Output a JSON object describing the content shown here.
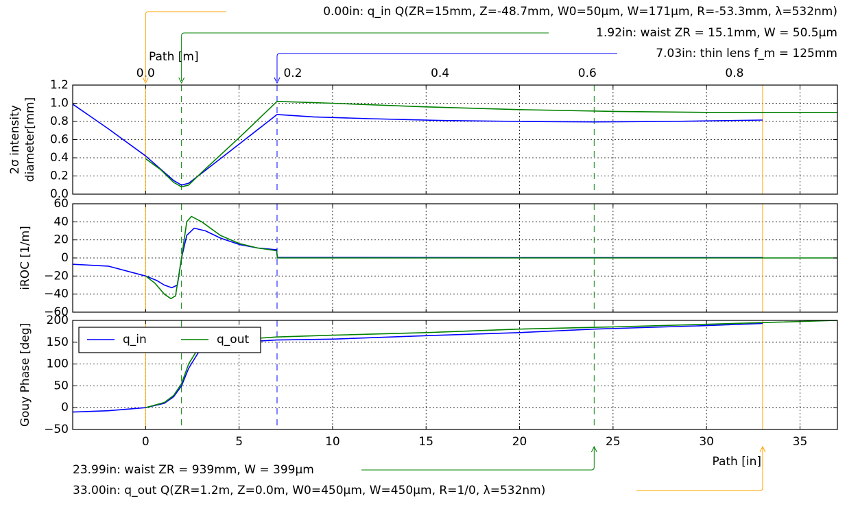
{
  "chart_data": {
    "type": "line",
    "x_axis": {
      "label": "Path [in]",
      "ticks": [
        0,
        5,
        10,
        15,
        20,
        25,
        30,
        35
      ],
      "range": [
        -3.9,
        37
      ]
    },
    "top_axis": {
      "label": "Path [m]",
      "ticks": [
        "0.0",
        "0.2",
        "0.4",
        "0.6",
        "0.8"
      ],
      "tick_values": [
        0.0,
        0.2,
        0.4,
        0.6,
        0.8
      ]
    },
    "panels": [
      {
        "id": "diameter",
        "ylabel": [
          "2σ intensity",
          "diameter[mm]"
        ],
        "ylim": [
          0,
          1.2
        ],
        "yticks": [
          "0.0",
          "0.2",
          "0.4",
          "0.6",
          "0.8",
          "1.0",
          "1.2"
        ],
        "ytick_values": [
          0,
          0.2,
          0.4,
          0.6,
          0.8,
          1.0,
          1.2
        ],
        "series": [
          {
            "name": "q_in",
            "color": "#0000ff",
            "points": [
              [
                -3.9,
                0.99
              ],
              [
                -2,
                0.72
              ],
              [
                0,
                0.42
              ],
              [
                1.0,
                0.24
              ],
              [
                1.5,
                0.15
              ],
              [
                1.92,
                0.1
              ],
              [
                2.3,
                0.12
              ],
              [
                3,
                0.23
              ],
              [
                5,
                0.55
              ],
              [
                7.03,
                0.876
              ],
              [
                9,
                0.85
              ],
              [
                12,
                0.83
              ],
              [
                16,
                0.81
              ],
              [
                20,
                0.8
              ],
              [
                24,
                0.795
              ],
              [
                28,
                0.8
              ],
              [
                33,
                0.815
              ]
            ]
          },
          {
            "name": "q_out",
            "color": "#008000",
            "points": [
              [
                0,
                0.39
              ],
              [
                0.8,
                0.27
              ],
              [
                1.5,
                0.13
              ],
              [
                1.92,
                0.08
              ],
              [
                2.3,
                0.1
              ],
              [
                3,
                0.24
              ],
              [
                5,
                0.62
              ],
              [
                7.03,
                1.02
              ],
              [
                10,
                1.0
              ],
              [
                15,
                0.96
              ],
              [
                20,
                0.93
              ],
              [
                25,
                0.91
              ],
              [
                30,
                0.9
              ],
              [
                37,
                0.9
              ]
            ]
          }
        ]
      },
      {
        "id": "iroc",
        "ylabel": [
          "iROC [1/m]"
        ],
        "ylim": [
          -60,
          60
        ],
        "yticks": [
          "−60",
          "−40",
          "−20",
          "0",
          "20",
          "40",
          "60"
        ],
        "ytick_values": [
          -60,
          -40,
          -20,
          0,
          20,
          40,
          60
        ],
        "series": [
          {
            "name": "q_in",
            "color": "#0000ff",
            "points": [
              [
                -3.9,
                -7
              ],
              [
                -2,
                -9
              ],
              [
                0,
                -20
              ],
              [
                0.6,
                -25
              ],
              [
                1.0,
                -30
              ],
              [
                1.4,
                -33
              ],
              [
                1.7,
                -30
              ],
              [
                1.92,
                0
              ],
              [
                2.2,
                25
              ],
              [
                2.6,
                33
              ],
              [
                3.2,
                30
              ],
              [
                4,
                22
              ],
              [
                5,
                15
              ],
              [
                6,
                11
              ],
              [
                7.0,
                9
              ],
              [
                7.05,
                0.5
              ],
              [
                10,
                0.5
              ],
              [
                20,
                0.4
              ],
              [
                33,
                0.3
              ]
            ]
          },
          {
            "name": "q_out",
            "color": "#008000",
            "points": [
              [
                0,
                -20
              ],
              [
                0.5,
                -28
              ],
              [
                1.0,
                -40
              ],
              [
                1.35,
                -45
              ],
              [
                1.6,
                -42
              ],
              [
                1.92,
                0
              ],
              [
                2.2,
                40
              ],
              [
                2.45,
                46
              ],
              [
                3,
                40
              ],
              [
                4,
                25
              ],
              [
                5,
                16
              ],
              [
                6,
                11
              ],
              [
                7.0,
                8
              ],
              [
                7.05,
                0
              ],
              [
                15,
                0
              ],
              [
                37,
                0
              ]
            ]
          }
        ]
      },
      {
        "id": "gouy",
        "ylabel": [
          "Gouy Phase [deg]"
        ],
        "ylim": [
          -50,
          200
        ],
        "yticks": [
          "−50",
          "0",
          "50",
          "100",
          "150",
          "200"
        ],
        "ytick_values": [
          -50,
          0,
          50,
          100,
          150,
          200
        ],
        "series": [
          {
            "name": "q_in",
            "color": "#0000ff",
            "points": [
              [
                -3.9,
                -10
              ],
              [
                -2,
                -7
              ],
              [
                0,
                0
              ],
              [
                1,
                10
              ],
              [
                1.5,
                25
              ],
              [
                1.92,
                50
              ],
              [
                2.3,
                90
              ],
              [
                2.8,
                125
              ],
              [
                3.5,
                140
              ],
              [
                5,
                150
              ],
              [
                7,
                155
              ],
              [
                10,
                157
              ],
              [
                15,
                165
              ],
              [
                20,
                172
              ],
              [
                24,
                180
              ],
              [
                30,
                188
              ],
              [
                33,
                193
              ]
            ]
          },
          {
            "name": "q_out",
            "color": "#008000",
            "points": [
              [
                0,
                0
              ],
              [
                1,
                12
              ],
              [
                1.5,
                28
              ],
              [
                1.92,
                55
              ],
              [
                2.3,
                100
              ],
              [
                2.8,
                135
              ],
              [
                3.5,
                148
              ],
              [
                5,
                156
              ],
              [
                7,
                162
              ],
              [
                10,
                166
              ],
              [
                15,
                172
              ],
              [
                20,
                180
              ],
              [
                25,
                185
              ],
              [
                30,
                191
              ],
              [
                33,
                195
              ],
              [
                37,
                200
              ]
            ]
          }
        ]
      }
    ],
    "vertical_markers": [
      {
        "x": 0.0,
        "color": "#ffa500",
        "style": "solid"
      },
      {
        "x": 1.92,
        "color": "#008000",
        "style": "dashed"
      },
      {
        "x": 7.03,
        "color": "#0000ff",
        "style": "dashed"
      },
      {
        "x": 23.99,
        "color": "#008000",
        "style": "dashed"
      },
      {
        "x": 33.0,
        "color": "#ffa500",
        "style": "solid"
      }
    ],
    "annotations_top": [
      {
        "x": 0.0,
        "color": "#ffa500",
        "text": "0.00in: q_in Q(ZR=15mm, Z=-48.7mm, W0=50µm, W=171µm, R=-53.3mm, λ=532nm)"
      },
      {
        "x": 1.92,
        "color": "#008000",
        "text": "1.92in: waist ZR = 15.1mm, W = 50.5µm"
      },
      {
        "x": 7.03,
        "color": "#0000ff",
        "text": "7.03in: thin lens f_m = 125mm"
      }
    ],
    "annotations_bottom": [
      {
        "x": 23.99,
        "color": "#008000",
        "text": "23.99in: waist ZR = 939mm, W = 399µm"
      },
      {
        "x": 33.0,
        "color": "#ffa500",
        "text": "33.00in: q_out Q(ZR=1.2m, Z=0.0m, W0=450µm, W=450µm, R=1/0, λ=532nm)"
      }
    ],
    "legend": {
      "placement": "upper-left of bottom panel",
      "entries": [
        "q_in",
        "q_out"
      ]
    },
    "grid": true
  }
}
